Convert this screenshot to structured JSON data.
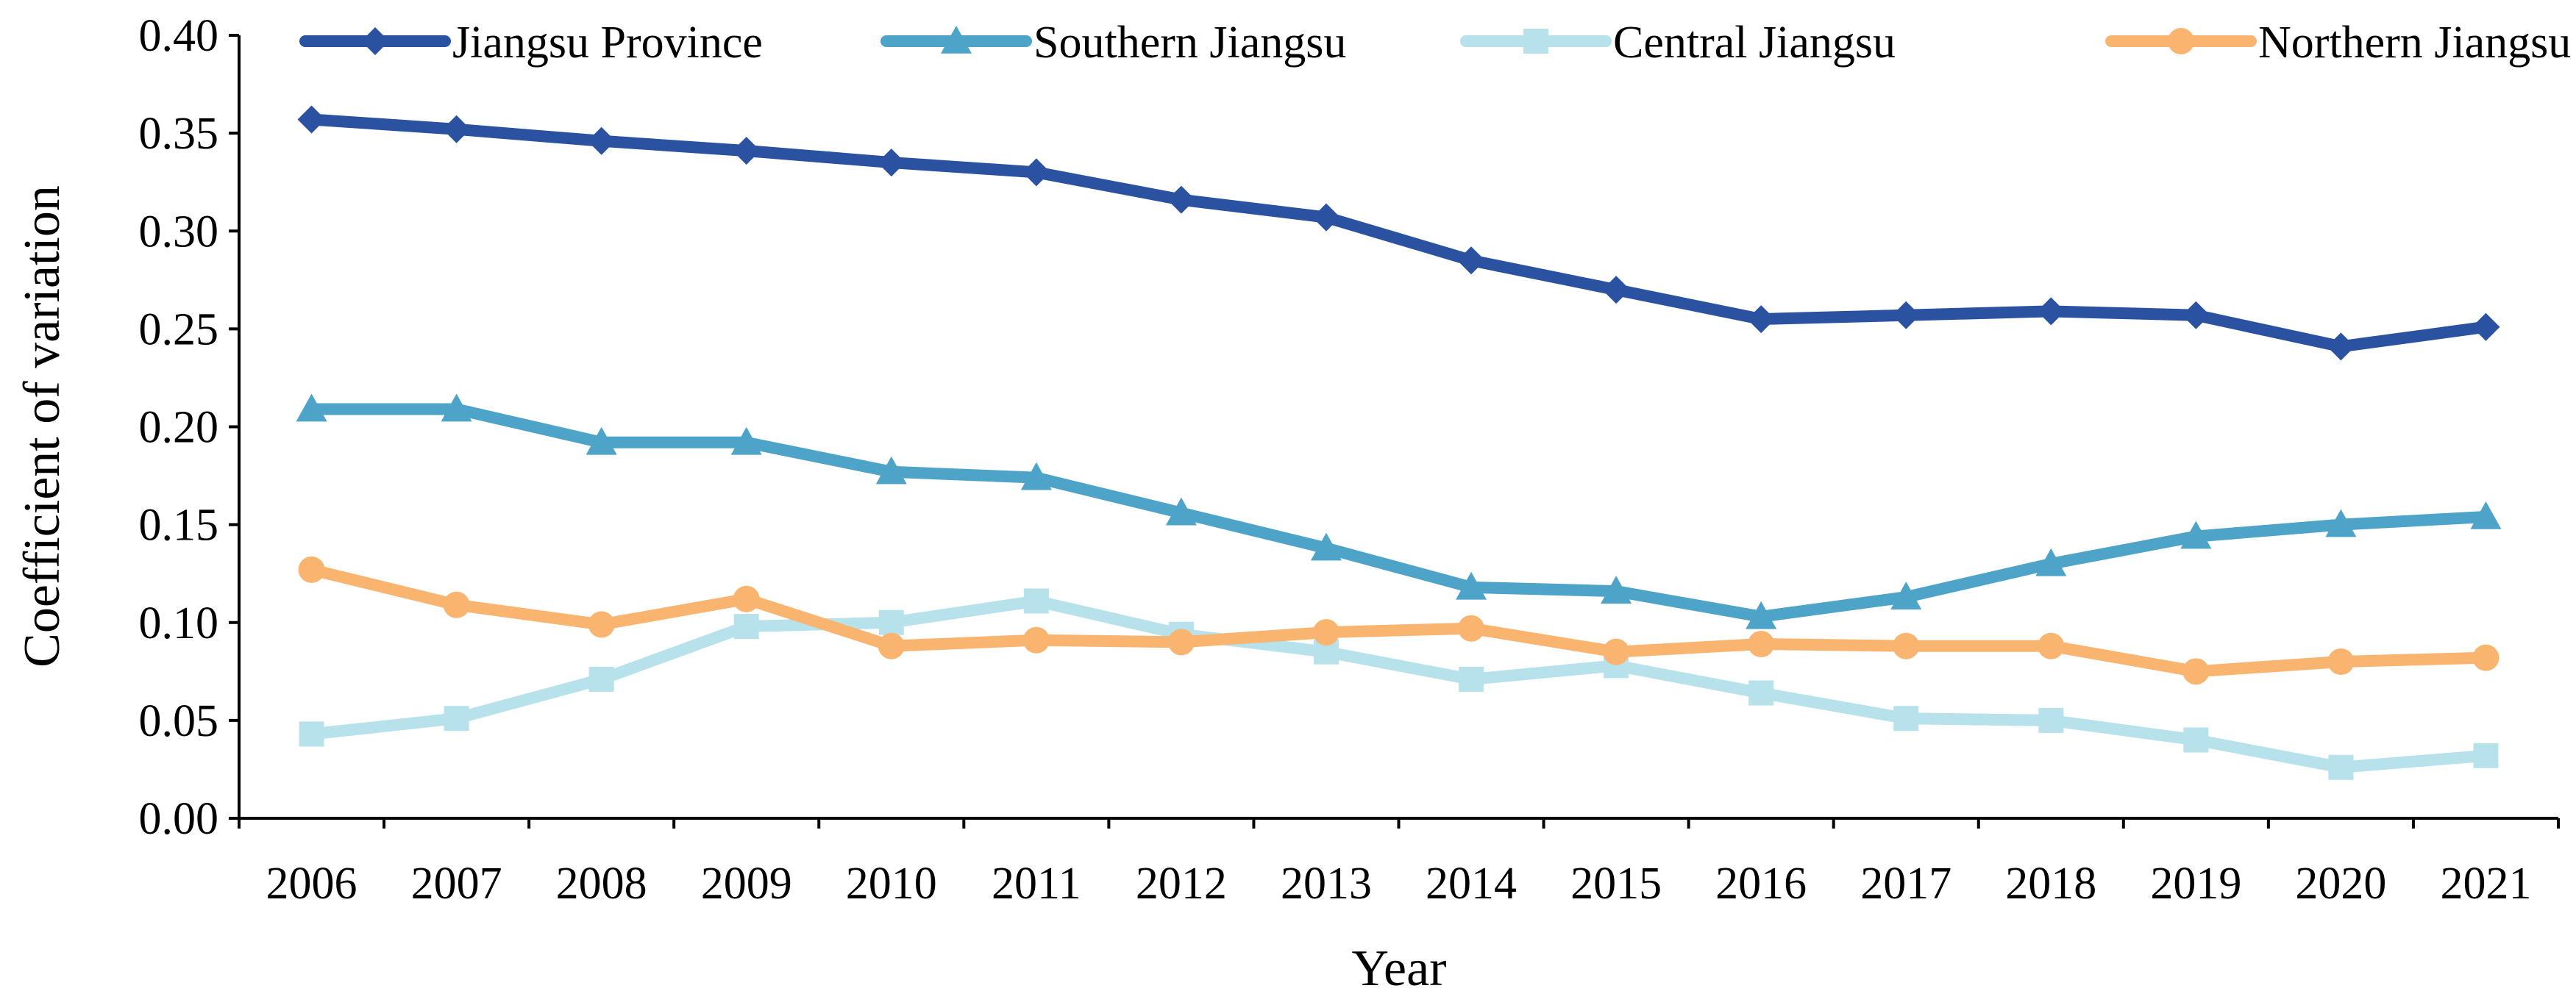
{
  "chart_data": {
    "type": "line",
    "title": "",
    "xlabel": "Year",
    "ylabel": "Coefficient of variation",
    "categories": [
      "2006",
      "2007",
      "2008",
      "2009",
      "2010",
      "2011",
      "2012",
      "2013",
      "2014",
      "2015",
      "2016",
      "2017",
      "2018",
      "2019",
      "2020",
      "2021"
    ],
    "y_ticks": [
      "0.00",
      "0.05",
      "0.10",
      "0.15",
      "0.20",
      "0.25",
      "0.30",
      "0.35",
      "0.40"
    ],
    "ylim": [
      0,
      0.4
    ],
    "grid": false,
    "legend_position": "top",
    "series": [
      {
        "name": "Jiangsu Province",
        "color": "#2A52A0",
        "marker": "diamond",
        "values": [
          0.357,
          0.352,
          0.346,
          0.341,
          0.335,
          0.33,
          0.316,
          0.307,
          0.285,
          0.27,
          0.255,
          0.257,
          0.259,
          0.257,
          0.241,
          0.251
        ]
      },
      {
        "name": "Southern Jiangsu",
        "color": "#4EA3C8",
        "marker": "triangle",
        "values": [
          0.209,
          0.209,
          0.192,
          0.192,
          0.177,
          0.174,
          0.156,
          0.138,
          0.118,
          0.116,
          0.103,
          0.113,
          0.13,
          0.144,
          0.15,
          0.154
        ]
      },
      {
        "name": "Central Jiangsu",
        "color": "#B7E2EC",
        "marker": "square",
        "values": [
          0.043,
          0.051,
          0.071,
          0.098,
          0.1,
          0.111,
          0.094,
          0.085,
          0.071,
          0.078,
          0.064,
          0.051,
          0.05,
          0.04,
          0.026,
          0.032
        ]
      },
      {
        "name": "Northern Jiangsu",
        "color": "#F9B46F",
        "marker": "circle",
        "values": [
          0.127,
          0.109,
          0.099,
          0.112,
          0.088,
          0.091,
          0.09,
          0.095,
          0.097,
          0.085,
          0.089,
          0.088,
          0.088,
          0.075,
          0.08,
          0.082
        ]
      }
    ]
  }
}
